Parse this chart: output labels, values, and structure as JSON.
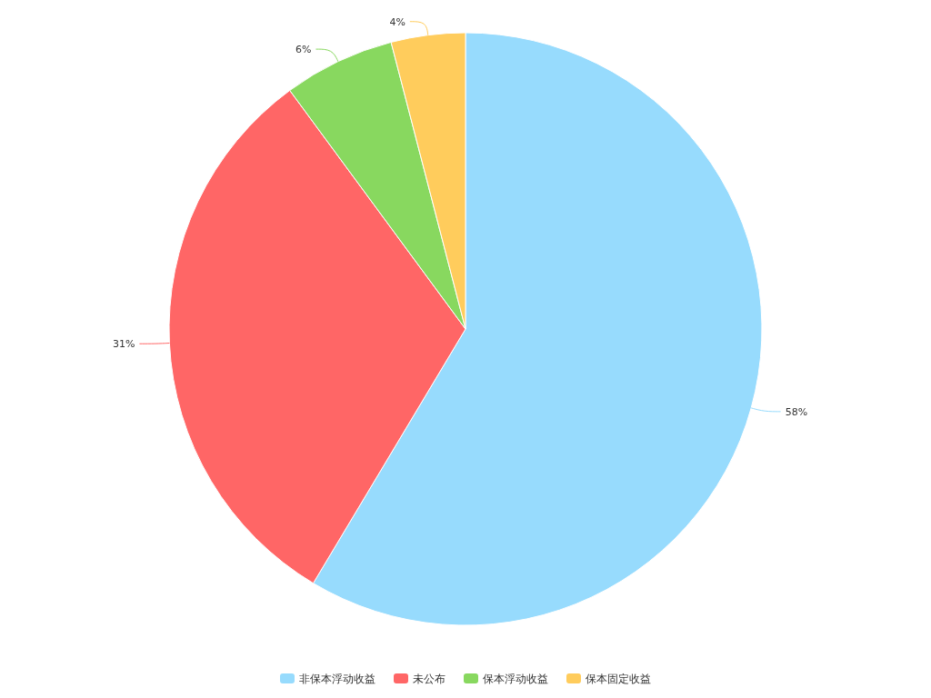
{
  "chart_data": {
    "type": "pie",
    "categories": [
      "非保本浮动收益",
      "未公布",
      "保本浮动收益",
      "保本固定收益"
    ],
    "values": [
      58,
      31,
      6,
      4
    ],
    "colors": [
      "#97dbfd",
      "#ff6666",
      "#88d85f",
      "#ffcc5c"
    ],
    "value_labels": [
      "58%",
      "31%",
      "6%",
      "4%"
    ],
    "legend": "bottom"
  }
}
